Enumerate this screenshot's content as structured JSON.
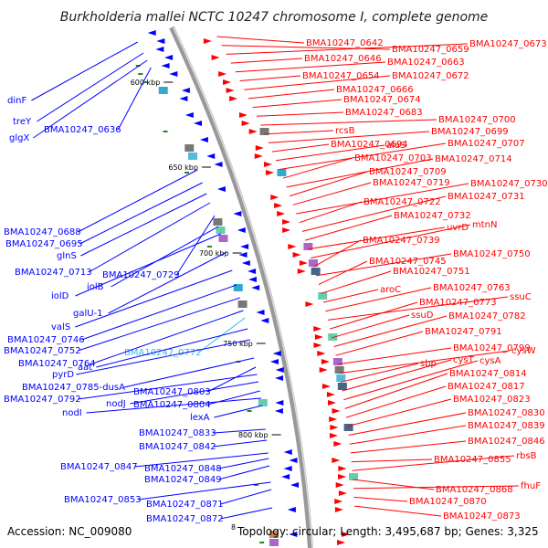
{
  "title": "Burkholderia mallei NCTC 10247 chromosome I, complete genome",
  "accession": "Accession: NC_009080",
  "footer_stats": "Topology: circular; Length: 3,495,687 bp; Genes: 3,325",
  "footer_marker": "8",
  "colors": {
    "forward": "#ff0000",
    "reverse": "#0000ff",
    "highlight": "#33bbee",
    "backbone": "#888888",
    "tick_marker": "#228822"
  },
  "ticks": [
    {
      "label": "600 kbp"
    },
    {
      "label": "650 kbp"
    },
    {
      "label": "700 kbp"
    },
    {
      "label": "750 kbp"
    },
    {
      "label": "800 kbp"
    }
  ],
  "left_labels": [
    {
      "text": "dinF"
    },
    {
      "text": "treY"
    },
    {
      "text": "glgX"
    },
    {
      "text": "BMA10247_0636"
    },
    {
      "text": "BMA10247_0688"
    },
    {
      "text": "BMA10247_0695"
    },
    {
      "text": "glnS"
    },
    {
      "text": "BMA10247_0713"
    },
    {
      "text": "BMA10247_0729"
    },
    {
      "text": "iolB"
    },
    {
      "text": "iolD"
    },
    {
      "text": "galU-1"
    },
    {
      "text": "valS"
    },
    {
      "text": "BMA10247_0746"
    },
    {
      "text": "BMA10247_0752"
    },
    {
      "text": "BMA10247_0772",
      "highlight": true
    },
    {
      "text": "BMA10247_0764"
    },
    {
      "text": "aat"
    },
    {
      "text": "pyrD"
    },
    {
      "text": "BMA10247_0785-dusA"
    },
    {
      "text": "BMA10247_0803"
    },
    {
      "text": "BMA10247_0792"
    },
    {
      "text": "nodJ"
    },
    {
      "text": "BMA10247_0804"
    },
    {
      "text": "nodI"
    },
    {
      "text": "lexA"
    },
    {
      "text": "BMA10247_0833"
    },
    {
      "text": "BMA10247_0842"
    },
    {
      "text": "BMA10247_0847"
    },
    {
      "text": "BMA10247_0848"
    },
    {
      "text": "BMA10247_0849"
    },
    {
      "text": "BMA10247_0853"
    },
    {
      "text": "BMA10247_0871"
    },
    {
      "text": "BMA10247_0872"
    }
  ],
  "right_labels": [
    {
      "text": "BMA10247_0642"
    },
    {
      "text": "BMA10247_0659"
    },
    {
      "text": "BMA10247_0673"
    },
    {
      "text": "BMA10247_0646"
    },
    {
      "text": "BMA10247_0663"
    },
    {
      "text": "BMA10247_0654"
    },
    {
      "text": "BMA10247_0672"
    },
    {
      "text": "BMA10247_0666"
    },
    {
      "text": "BMA10247_0674"
    },
    {
      "text": "BMA10247_0683"
    },
    {
      "text": "BMA10247_0700"
    },
    {
      "text": "rcsB"
    },
    {
      "text": "BMA10247_0699"
    },
    {
      "text": "BMA10247_0694"
    },
    {
      "text": "alaS"
    },
    {
      "text": "BMA10247_0707"
    },
    {
      "text": "BMA10247_0703"
    },
    {
      "text": "BMA10247_0714"
    },
    {
      "text": "BMA10247_0709"
    },
    {
      "text": "BMA10247_0719"
    },
    {
      "text": "BMA10247_0730"
    },
    {
      "text": "BMA10247_0722"
    },
    {
      "text": "BMA10247_0731"
    },
    {
      "text": "BMA10247_0732"
    },
    {
      "text": "uvrD"
    },
    {
      "text": "mtnN"
    },
    {
      "text": "BMA10247_0739"
    },
    {
      "text": "BMA10247_0750"
    },
    {
      "text": "BMA10247_0745"
    },
    {
      "text": "BMA10247_0751"
    },
    {
      "text": "aroC"
    },
    {
      "text": "BMA10247_0763"
    },
    {
      "text": "ssuC"
    },
    {
      "text": "BMA10247_0773"
    },
    {
      "text": "ssuD"
    },
    {
      "text": "BMA10247_0782"
    },
    {
      "text": "BMA10247_0791"
    },
    {
      "text": "BMA10247_0799"
    },
    {
      "text": "cysW"
    },
    {
      "text": "sbp"
    },
    {
      "text": "cysT"
    },
    {
      "text": "cysA"
    },
    {
      "text": "BMA10247_0814"
    },
    {
      "text": "BMA10247_0817"
    },
    {
      "text": "BMA10247_0823"
    },
    {
      "text": "BMA10247_0830"
    },
    {
      "text": "BMA10247_0839"
    },
    {
      "text": "BMA10247_0846"
    },
    {
      "text": "BMA10247_0855"
    },
    {
      "text": "rbsB"
    },
    {
      "text": "BMA10247_0868"
    },
    {
      "text": "fhuF"
    },
    {
      "text": "BMA10247_0870"
    },
    {
      "text": "BMA10247_0873"
    }
  ]
}
